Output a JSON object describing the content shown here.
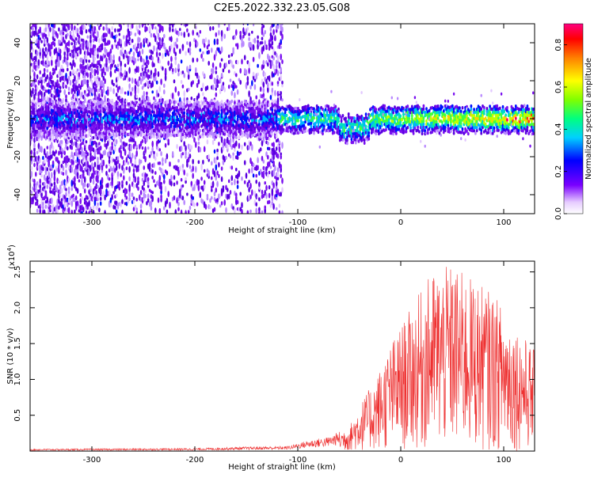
{
  "title": "C2E5.2022.332.23.05.G08",
  "colors": {
    "snr_line": "#ee3030",
    "axis": "#000000"
  },
  "chart_data": [
    {
      "type": "heatmap",
      "name": "spectrogram",
      "xlabel": "Height of straight line (km)",
      "ylabel": "Frequency (Hz)",
      "xlim": [
        -360,
        130
      ],
      "ylim": [
        -50,
        50
      ],
      "x_ticks": [
        -300,
        -200,
        -100,
        0,
        100
      ],
      "y_ticks": [
        -40,
        -20,
        0,
        20,
        40
      ],
      "grid": false,
      "colorbar": {
        "label": "Normalized spectral amplitude",
        "range": [
          0.0,
          0.9
        ],
        "ticks": [
          "0.0",
          "0.2",
          "0.4",
          "0.6",
          "0.8"
        ],
        "colormap": "hsv-reversed (white→purple→blue→cyan→green→yellow→red→magenta)"
      },
      "description_values": {
        "band_center_freq_hz": 0,
        "band_halfwidth_hz": 8,
        "amplitude_left_region": 0.15,
        "amplitude_right_region": 0.55,
        "peak_near_x": 120
      }
    },
    {
      "type": "line",
      "name": "snr",
      "xlabel": "Height of straight line (km)",
      "ylabel": "SNR (10 * v/v)",
      "yscale_label_base": "(x10",
      "yscale_label_exp": "4",
      "yscale_label_close": ")",
      "xlim": [
        -360,
        130
      ],
      "ylim": [
        0,
        26500
      ],
      "x_ticks": [
        -300,
        -200,
        -100,
        0,
        100
      ],
      "y_ticks": [
        "0.5",
        "1.0",
        "1.5",
        "2.0",
        "2.5"
      ],
      "y_tick_values": [
        5000,
        10000,
        15000,
        20000,
        25000
      ],
      "grid": false,
      "envelope": [
        {
          "x": -360,
          "y": 300
        },
        {
          "x": -200,
          "y": 400
        },
        {
          "x": -150,
          "y": 600
        },
        {
          "x": -110,
          "y": 700
        },
        {
          "x": -90,
          "y": 1500
        },
        {
          "x": -70,
          "y": 2000
        },
        {
          "x": -50,
          "y": 3500
        },
        {
          "x": -40,
          "y": 6500
        },
        {
          "x": -25,
          "y": 10000
        },
        {
          "x": -10,
          "y": 15000
        },
        {
          "x": 10,
          "y": 20000
        },
        {
          "x": 30,
          "y": 25000
        },
        {
          "x": 50,
          "y": 26000
        },
        {
          "x": 70,
          "y": 24000
        },
        {
          "x": 90,
          "y": 22000
        },
        {
          "x": 110,
          "y": 18000
        },
        {
          "x": 130,
          "y": 14000
        }
      ]
    }
  ]
}
